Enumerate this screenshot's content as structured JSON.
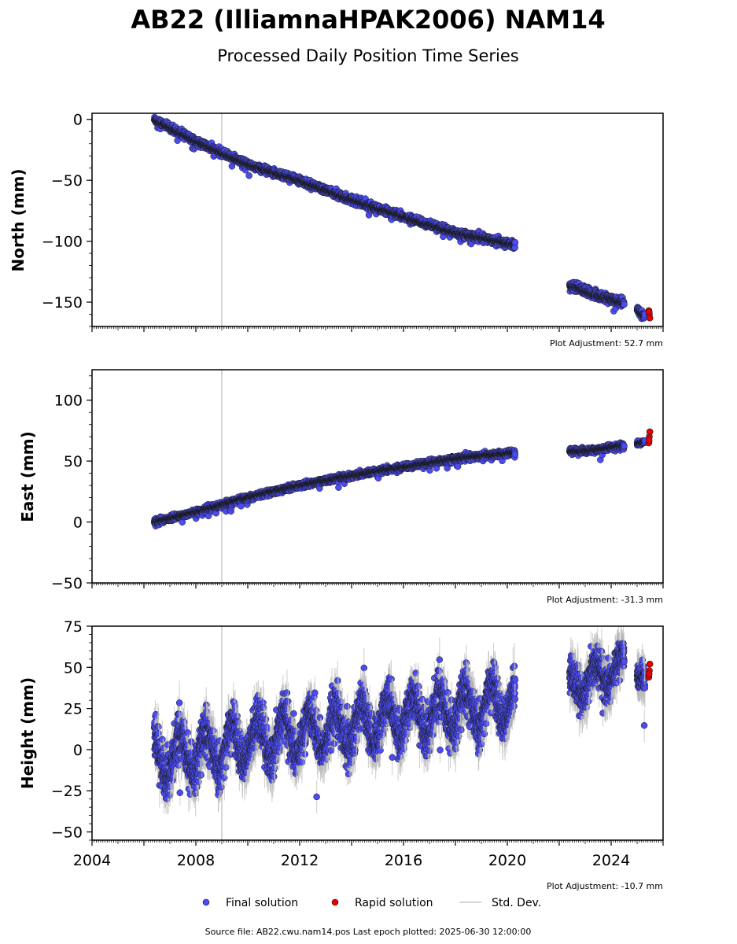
{
  "figure": {
    "title": "AB22 (IlliamnaHPAK2006) NAM14",
    "subtitle": "Processed Daily Position Time Series",
    "source_note": "Source file: AB22.cwu.nam14.pos  Last epoch plotted: 2025-06-30 12:00:00"
  },
  "legend": {
    "final": "Final solution",
    "rapid": "Rapid solution",
    "stddev": "Std. Dev."
  },
  "colors": {
    "final": "#4b4bf2",
    "rapid": "#e60000",
    "marker_edge": "#1a1a1a",
    "stddev": "#b9b9b9",
    "event_line": "#c8c8c8"
  },
  "chart_data": [
    {
      "type": "scatter",
      "ylabel": "North (mm)",
      "xlim": [
        2004,
        2026
      ],
      "ylim": [
        -170,
        5
      ],
      "yticks": [
        0,
        -50,
        -100,
        -150
      ],
      "adjustment_label": "Plot Adjustment: 52.7 mm",
      "event_lines": [
        2009.0
      ],
      "final_segments": [
        {
          "x": [
            2006.4,
            2008.0,
            2010.0,
            2012.0,
            2014.0,
            2016.0,
            2018.0,
            2020.3
          ],
          "y": [
            0,
            -18,
            -37,
            -50,
            -66,
            -80,
            -93,
            -103
          ],
          "noise": 3.0
        },
        {
          "x": [
            2022.4,
            2023.4,
            2024.5
          ],
          "y": [
            -136,
            -144,
            -151
          ],
          "noise": 4.0
        },
        {
          "x": [
            2025.0,
            2025.3
          ],
          "y": [
            -156,
            -162
          ],
          "noise": 3.0
        }
      ],
      "rapid_points": [
        {
          "x": 2025.45,
          "y": -157
        },
        {
          "x": 2025.47,
          "y": -160
        },
        {
          "x": 2025.49,
          "y": -163
        },
        {
          "x": 2025.46,
          "y": -158
        }
      ]
    },
    {
      "type": "scatter",
      "ylabel": "East (mm)",
      "xlim": [
        2004,
        2026
      ],
      "ylim": [
        -50,
        125
      ],
      "yticks": [
        100,
        50,
        0,
        -50
      ],
      "adjustment_label": "Plot Adjustment: -31.3 mm",
      "event_lines": [
        2009.0
      ],
      "final_segments": [
        {
          "x": [
            2006.4,
            2008.0,
            2010.0,
            2012.0,
            2014.0,
            2016.0,
            2018.0,
            2020.3
          ],
          "y": [
            0,
            8,
            20,
            30,
            38,
            45,
            52,
            57
          ],
          "noise": 2.5
        },
        {
          "x": [
            2022.4,
            2023.4,
            2024.5
          ],
          "y": [
            58,
            59,
            63
          ],
          "noise": 2.5
        },
        {
          "x": [
            2025.0,
            2025.3
          ],
          "y": [
            64,
            66
          ],
          "noise": 2.0
        }
      ],
      "rapid_points": [
        {
          "x": 2025.45,
          "y": 65
        },
        {
          "x": 2025.47,
          "y": 70
        },
        {
          "x": 2025.49,
          "y": 74
        },
        {
          "x": 2025.46,
          "y": 67
        }
      ]
    },
    {
      "type": "scatter",
      "ylabel": "Height (mm)",
      "xlim": [
        2004,
        2026
      ],
      "ylim": [
        -55,
        75
      ],
      "yticks": [
        75,
        50,
        25,
        0,
        -25,
        -50
      ],
      "xticks": [
        2004,
        2008,
        2012,
        2016,
        2020,
        2024
      ],
      "adjustment_label": "Plot Adjustment: -10.7 mm",
      "event_lines": [
        2009.0
      ],
      "final_segments": [
        {
          "x": [
            2006.4,
            2008.0,
            2010.0,
            2012.0,
            2014.0,
            2016.0,
            2018.0,
            2020.3
          ],
          "y": [
            -5,
            -2,
            5,
            10,
            14,
            20,
            24,
            30
          ],
          "noise": 11,
          "seasonal": 12
        },
        {
          "x": [
            2022.4,
            2023.4,
            2024.5
          ],
          "y": [
            38,
            44,
            50
          ],
          "noise": 9,
          "seasonal": 8
        },
        {
          "x": [
            2025.0,
            2025.3
          ],
          "y": [
            45,
            44
          ],
          "noise": 6
        }
      ],
      "rapid_points": [
        {
          "x": 2025.45,
          "y": 44
        },
        {
          "x": 2025.47,
          "y": 48
        },
        {
          "x": 2025.49,
          "y": 52
        },
        {
          "x": 2025.46,
          "y": 46
        }
      ]
    }
  ]
}
